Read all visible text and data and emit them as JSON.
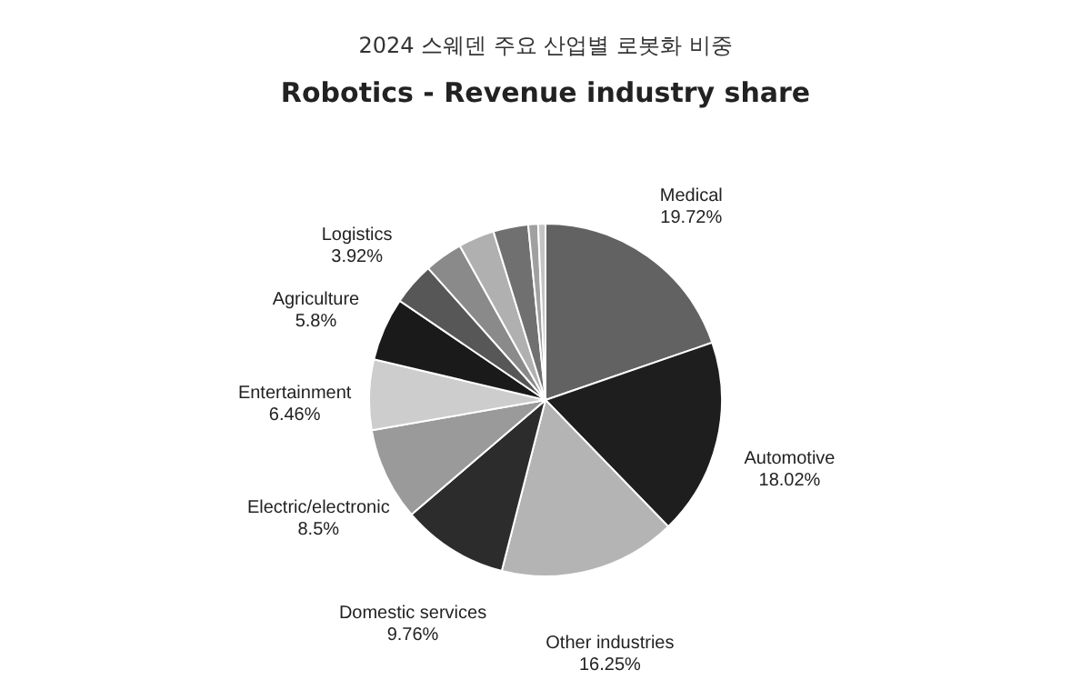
{
  "chart_data": {
    "type": "pie",
    "title": "2024 스웨덴 주요 산업별 로봇화 비중",
    "subtitle": "Robotics - Revenue industry share",
    "categories": [
      "Medical",
      "Automotive",
      "Other industries",
      "Domestic services",
      "Electric/electronic",
      "Entertainment",
      "Agriculture",
      "Logistics",
      null,
      null,
      null,
      null,
      null
    ],
    "values": [
      19.72,
      18.02,
      16.25,
      9.76,
      8.5,
      6.46,
      5.8,
      3.92,
      3.5,
      3.3,
      3.2,
      0.9,
      0.67
    ],
    "value_labels": [
      "19.72%",
      "18.02%",
      "16.25%",
      "9.76%",
      "8.5%",
      "6.46%",
      "5.8%",
      "3.92%",
      null,
      null,
      null,
      null,
      null
    ],
    "colors": [
      "#626262",
      "#1e1e1e",
      "#b4b4b4",
      "#2c2c2c",
      "#9a9a9a",
      "#cdcdcd",
      "#1a1a1a",
      "#575757",
      "#8a8a8a",
      "#b0b0b0",
      "#707070",
      "#a0a0a0",
      "#c4c4c4"
    ]
  }
}
